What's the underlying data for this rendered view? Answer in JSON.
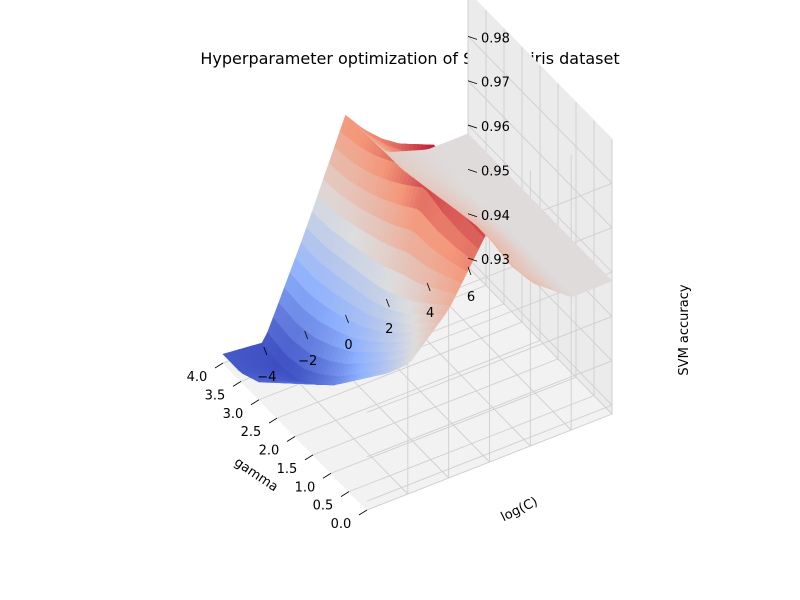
{
  "figure": {
    "title": "Hyperparameter optimization of SVM for iris dataset"
  },
  "chart_data": {
    "type": "surface",
    "title": "Hyperparameter optimization of SVM for iris dataset",
    "xlabel": "gamma",
    "ylabel": "log(C)",
    "zlabel": "SVM accuracy",
    "colormap": "coolwarm",
    "colormap_stops": [
      "#3b4cc0",
      "#8db0fe",
      "#dddddd",
      "#f4987a",
      "#b40426"
    ],
    "xlim": [
      0.0,
      4.0
    ],
    "ylim": [
      -6,
      6
    ],
    "zlim": [
      0.928,
      0.99
    ],
    "x_ticks": [
      "0.0",
      "0.5",
      "1.0",
      "1.5",
      "2.0",
      "2.5",
      "3.0",
      "3.5",
      "4.0"
    ],
    "y_ticks": [
      "−4",
      "−2",
      "0",
      "2",
      "4",
      "6"
    ],
    "z_ticks": [
      "0.93",
      "0.94",
      "0.95",
      "0.96",
      "0.97",
      "0.98"
    ],
    "grid": true,
    "surface_points": {
      "gamma": [
        0.0,
        0.5,
        1.0,
        1.5,
        2.0,
        2.5,
        3.0,
        3.5,
        4.0
      ],
      "logC": [
        -6,
        -4,
        -2,
        0,
        2,
        4,
        6
      ],
      "accuracy": [
        [
          0.962,
          0.957,
          0.966,
          0.981,
          0.965,
          0.958,
          0.958
        ],
        [
          0.958,
          0.951,
          0.962,
          0.982,
          0.964,
          0.958,
          0.958
        ],
        [
          0.952,
          0.946,
          0.958,
          0.984,
          0.965,
          0.958,
          0.958
        ],
        [
          0.946,
          0.941,
          0.955,
          0.987,
          0.965,
          0.958,
          0.958
        ],
        [
          0.94,
          0.936,
          0.953,
          0.983,
          0.964,
          0.958,
          0.958
        ],
        [
          0.936,
          0.932,
          0.952,
          0.979,
          0.963,
          0.958,
          0.958
        ],
        [
          0.932,
          0.929,
          0.951,
          0.976,
          0.962,
          0.958,
          0.958
        ],
        [
          0.93,
          0.928,
          0.95,
          0.974,
          0.961,
          0.958,
          0.958
        ],
        [
          0.93,
          0.929,
          0.95,
          0.973,
          0.961,
          0.958,
          0.958
        ]
      ]
    }
  }
}
